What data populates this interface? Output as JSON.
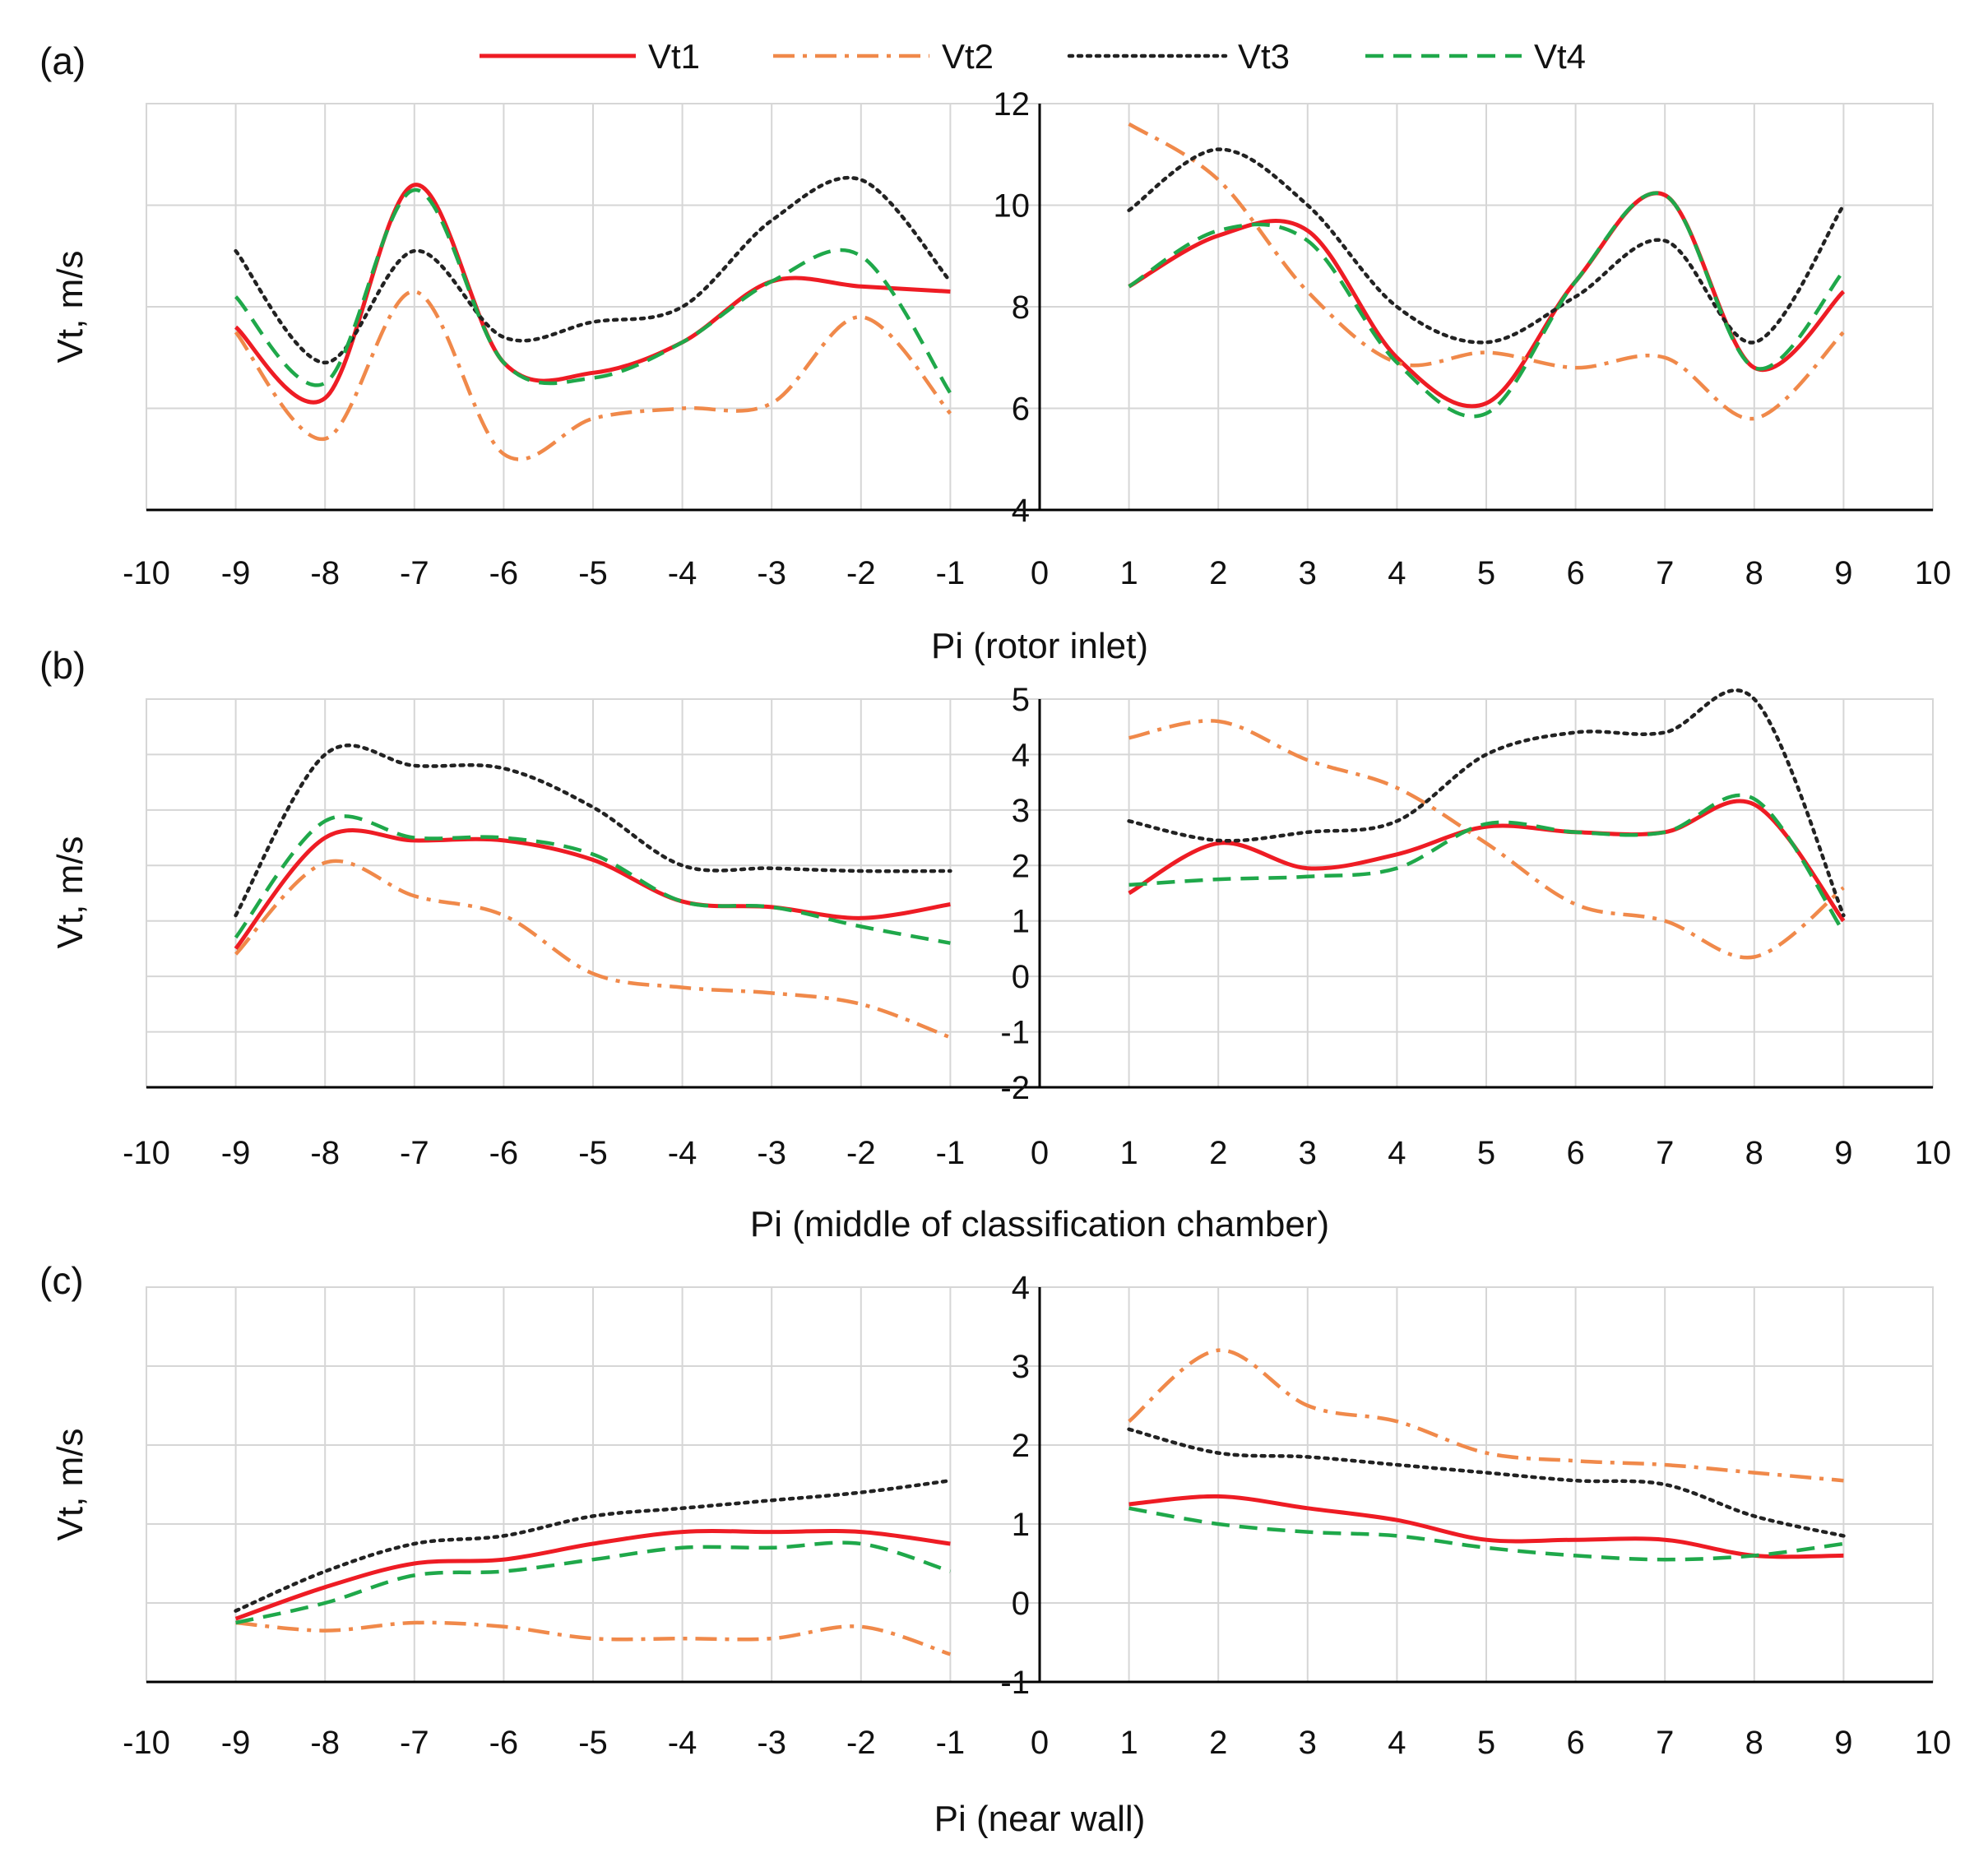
{
  "colors": {
    "Vt1": "#ee1c24",
    "Vt2": "#f0894a",
    "Vt3": "#222222",
    "Vt4": "#1fa84a",
    "grid": "#d6d6d6",
    "axis": "#000000"
  },
  "legend": [
    {
      "name": "Vt1",
      "style": "solid"
    },
    {
      "name": "Vt2",
      "style": "dashdot"
    },
    {
      "name": "Vt3",
      "style": "dotted"
    },
    {
      "name": "Vt4",
      "style": "dashed"
    }
  ],
  "chart_data": [
    {
      "type": "line",
      "panel_label": "(a)",
      "xlabel": "Pi (rotor inlet)",
      "ylabel": "Vt, m/s",
      "xlim": [
        -10,
        10
      ],
      "ylim": [
        4,
        12
      ],
      "x_ticks": [
        "-10",
        "-9",
        "-8",
        "-7",
        "-6",
        "-5",
        "-4",
        "-3",
        "-2",
        "-1",
        "0",
        "1",
        "2",
        "3",
        "4",
        "5",
        "6",
        "7",
        "8",
        "9",
        "10"
      ],
      "y_ticks": [
        "4",
        "6",
        "8",
        "10",
        "12"
      ],
      "y_tick_values": [
        4,
        6,
        8,
        10,
        12
      ],
      "grid": true,
      "x": [
        -9,
        -8,
        -7,
        -6,
        -5,
        -4,
        -3,
        -2,
        -1,
        1,
        2,
        3,
        4,
        5,
        6,
        7,
        8,
        9
      ],
      "series": [
        {
          "name": "Vt1",
          "values": [
            7.6,
            6.2,
            10.4,
            6.9,
            6.7,
            7.3,
            8.5,
            8.4,
            8.3,
            8.4,
            9.4,
            9.5,
            7.0,
            6.1,
            8.5,
            10.2,
            6.8,
            8.3
          ]
        },
        {
          "name": "Vt2",
          "values": [
            7.5,
            5.4,
            8.3,
            5.1,
            5.8,
            6.0,
            6.1,
            7.8,
            5.9,
            11.6,
            10.5,
            8.3,
            6.9,
            7.1,
            6.8,
            7.0,
            5.8,
            7.5
          ]
        },
        {
          "name": "Vt3",
          "values": [
            9.1,
            6.9,
            9.1,
            7.4,
            7.7,
            8.0,
            9.7,
            10.5,
            8.5,
            9.9,
            11.1,
            10.0,
            8.0,
            7.3,
            8.2,
            9.3,
            7.3,
            10.0
          ]
        },
        {
          "name": "Vt4",
          "values": [
            8.2,
            6.5,
            10.3,
            6.9,
            6.6,
            7.3,
            8.5,
            9.0,
            6.3,
            8.4,
            9.5,
            9.3,
            6.9,
            5.9,
            8.5,
            10.2,
            6.8,
            8.7
          ]
        }
      ]
    },
    {
      "type": "line",
      "panel_label": "(b)",
      "xlabel": "Pi (middle of classification chamber)",
      "ylabel": "Vt, m/s",
      "xlim": [
        -10,
        10
      ],
      "ylim": [
        -2,
        5
      ],
      "x_ticks": [
        "-10",
        "-9",
        "-8",
        "-7",
        "-6",
        "-5",
        "-4",
        "-3",
        "-2",
        "-1",
        "0",
        "1",
        "2",
        "3",
        "4",
        "5",
        "6",
        "7",
        "8",
        "9",
        "10"
      ],
      "y_ticks": [
        "-2",
        "-1",
        "0",
        "1",
        "2",
        "3",
        "4",
        "5"
      ],
      "y_tick_values": [
        -2,
        -1,
        0,
        1,
        2,
        3,
        4,
        5
      ],
      "grid": true,
      "x": [
        -9,
        -8,
        -7,
        -6,
        -5,
        -4,
        -3,
        -2,
        -1,
        1,
        2,
        3,
        4,
        5,
        6,
        7,
        8,
        9
      ],
      "series": [
        {
          "name": "Vt1",
          "values": [
            0.5,
            2.5,
            2.45,
            2.45,
            2.1,
            1.35,
            1.25,
            1.05,
            1.3,
            1.5,
            2.4,
            1.95,
            2.2,
            2.7,
            2.6,
            2.6,
            3.1,
            1.0
          ]
        },
        {
          "name": "Vt2",
          "values": [
            0.4,
            2.05,
            1.45,
            1.1,
            0.05,
            -0.2,
            -0.3,
            -0.5,
            -1.1,
            4.3,
            4.6,
            3.9,
            3.4,
            2.4,
            1.3,
            1.0,
            0.35,
            1.6
          ]
        },
        {
          "name": "Vt3",
          "values": [
            1.1,
            4.0,
            3.8,
            3.75,
            3.05,
            2.0,
            1.95,
            1.9,
            1.9,
            2.8,
            2.45,
            2.6,
            2.8,
            4.0,
            4.4,
            4.4,
            5.0,
            1.1
          ]
        },
        {
          "name": "Vt4",
          "values": [
            0.7,
            2.8,
            2.5,
            2.5,
            2.2,
            1.35,
            1.25,
            0.9,
            0.6,
            1.65,
            1.75,
            1.8,
            1.95,
            2.75,
            2.6,
            2.6,
            3.2,
            0.8
          ]
        }
      ]
    },
    {
      "type": "line",
      "panel_label": "(c)",
      "xlabel": "Pi (near wall)",
      "ylabel": "Vt, m/s",
      "xlim": [
        -10,
        10
      ],
      "ylim": [
        -1,
        4
      ],
      "x_ticks": [
        "-10",
        "-9",
        "-8",
        "-7",
        "-6",
        "-5",
        "-4",
        "-3",
        "-2",
        "-1",
        "0",
        "1",
        "2",
        "3",
        "4",
        "5",
        "6",
        "7",
        "8",
        "9",
        "10"
      ],
      "y_ticks": [
        "-1",
        "0",
        "1",
        "2",
        "3",
        "4"
      ],
      "y_tick_values": [
        -1,
        0,
        1,
        2,
        3,
        4
      ],
      "grid": true,
      "x": [
        -9,
        -8,
        -7,
        -6,
        -5,
        -4,
        -3,
        -2,
        -1,
        1,
        2,
        3,
        4,
        5,
        6,
        7,
        8,
        9
      ],
      "series": [
        {
          "name": "Vt1",
          "values": [
            -0.2,
            0.2,
            0.5,
            0.55,
            0.75,
            0.9,
            0.9,
            0.9,
            0.75,
            1.25,
            1.35,
            1.2,
            1.05,
            0.8,
            0.8,
            0.8,
            0.6,
            0.6
          ]
        },
        {
          "name": "Vt2",
          "values": [
            -0.25,
            -0.35,
            -0.25,
            -0.3,
            -0.45,
            -0.45,
            -0.45,
            -0.3,
            -0.65,
            2.3,
            3.2,
            2.5,
            2.3,
            1.9,
            1.8,
            1.75,
            1.65,
            1.55
          ]
        },
        {
          "name": "Vt3",
          "values": [
            -0.1,
            0.4,
            0.75,
            0.85,
            1.1,
            1.2,
            1.3,
            1.4,
            1.55,
            2.2,
            1.9,
            1.85,
            1.75,
            1.65,
            1.55,
            1.5,
            1.1,
            0.85
          ]
        },
        {
          "name": "Vt4",
          "values": [
            -0.25,
            0.0,
            0.35,
            0.4,
            0.55,
            0.7,
            0.7,
            0.75,
            0.4,
            1.2,
            1.0,
            0.9,
            0.85,
            0.7,
            0.6,
            0.55,
            0.6,
            0.75
          ]
        }
      ]
    }
  ]
}
